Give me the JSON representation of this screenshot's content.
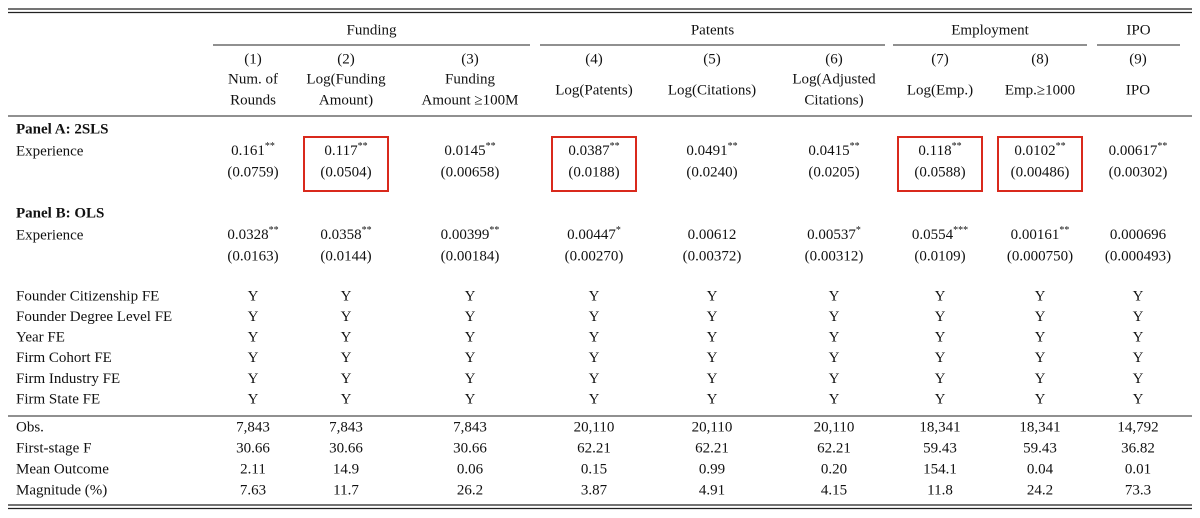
{
  "groups": [
    {
      "label": "Funding",
      "columns": [
        {
          "number": "(1)",
          "label": [
            "Num. of",
            "Rounds"
          ]
        },
        {
          "number": "(2)",
          "label": [
            "Log(Funding",
            "Amount)"
          ]
        },
        {
          "number": "(3)",
          "label": [
            "Funding",
            "Amount ≥100M"
          ]
        }
      ]
    },
    {
      "label": "Patents",
      "columns": [
        {
          "number": "(4)",
          "label": [
            "Log(Patents)"
          ]
        },
        {
          "number": "(5)",
          "label": [
            "Log(Citations)"
          ]
        },
        {
          "number": "(6)",
          "label": [
            "Log(Adjusted",
            "Citations)"
          ]
        }
      ]
    },
    {
      "label": "Employment",
      "columns": [
        {
          "number": "(7)",
          "label": [
            "Log(Emp.)"
          ]
        },
        {
          "number": "(8)",
          "label": [
            "Emp.≥1000"
          ]
        }
      ]
    },
    {
      "label": "IPO",
      "columns": [
        {
          "number": "(9)",
          "label": [
            "IPO"
          ]
        }
      ]
    }
  ],
  "panels": [
    {
      "title": "Panel A: 2SLS",
      "row_label": "Experience",
      "cells": [
        {
          "coef": "0.161",
          "stars": "**",
          "se": "(0.0759)"
        },
        {
          "coef": "0.117",
          "stars": "**",
          "se": "(0.0504)",
          "highlighted": true
        },
        {
          "coef": "0.0145",
          "stars": "**",
          "se": "(0.00658)"
        },
        {
          "coef": "0.0387",
          "stars": "**",
          "se": "(0.0188)",
          "highlighted": true
        },
        {
          "coef": "0.0491",
          "stars": "**",
          "se": "(0.0240)"
        },
        {
          "coef": "0.0415",
          "stars": "**",
          "se": "(0.0205)"
        },
        {
          "coef": "0.118",
          "stars": "**",
          "se": "(0.0588)",
          "highlighted": true
        },
        {
          "coef": "0.0102",
          "stars": "**",
          "se": "(0.00486)",
          "highlighted": true
        },
        {
          "coef": "0.00617",
          "stars": "**",
          "se": "(0.00302)"
        }
      ]
    },
    {
      "title": "Panel B: OLS",
      "row_label": "Experience",
      "cells": [
        {
          "coef": "0.0328",
          "stars": "**",
          "se": "(0.0163)"
        },
        {
          "coef": "0.0358",
          "stars": "**",
          "se": "(0.0144)"
        },
        {
          "coef": "0.00399",
          "stars": "**",
          "se": "(0.00184)"
        },
        {
          "coef": "0.00447",
          "stars": "*",
          "se": "(0.00270)"
        },
        {
          "coef": "0.00612",
          "se": "(0.00372)"
        },
        {
          "coef": "0.00537",
          "stars": "*",
          "se": "(0.00312)"
        },
        {
          "coef": "0.0554",
          "stars": "***",
          "se": "(0.0109)"
        },
        {
          "coef": "0.00161",
          "stars": "**",
          "se": "(0.000750)"
        },
        {
          "coef": "0.000696",
          "se": "(0.000493)"
        }
      ]
    }
  ],
  "fixed_effects": [
    {
      "label": "Founder Citizenship FE",
      "values": [
        "Y",
        "Y",
        "Y",
        "Y",
        "Y",
        "Y",
        "Y",
        "Y",
        "Y"
      ]
    },
    {
      "label": "Founder Degree Level FE",
      "values": [
        "Y",
        "Y",
        "Y",
        "Y",
        "Y",
        "Y",
        "Y",
        "Y",
        "Y"
      ]
    },
    {
      "label": "Year FE",
      "values": [
        "Y",
        "Y",
        "Y",
        "Y",
        "Y",
        "Y",
        "Y",
        "Y",
        "Y"
      ]
    },
    {
      "label": "Firm Cohort FE",
      "values": [
        "Y",
        "Y",
        "Y",
        "Y",
        "Y",
        "Y",
        "Y",
        "Y",
        "Y"
      ]
    },
    {
      "label": "Firm Industry FE",
      "values": [
        "Y",
        "Y",
        "Y",
        "Y",
        "Y",
        "Y",
        "Y",
        "Y",
        "Y"
      ]
    },
    {
      "label": "Firm State FE",
      "values": [
        "Y",
        "Y",
        "Y",
        "Y",
        "Y",
        "Y",
        "Y",
        "Y",
        "Y"
      ]
    }
  ],
  "statistics": [
    {
      "label": "Obs.",
      "values": [
        "7,843",
        "7,843",
        "7,843",
        "20,110",
        "20,110",
        "20,110",
        "18,341",
        "18,341",
        "14,792"
      ]
    },
    {
      "label": "First-stage F",
      "values": [
        "30.66",
        "30.66",
        "30.66",
        "62.21",
        "62.21",
        "62.21",
        "59.43",
        "59.43",
        "36.82"
      ]
    },
    {
      "label": "Mean Outcome",
      "values": [
        "2.11",
        "14.9",
        "0.06",
        "0.15",
        "0.99",
        "0.20",
        "154.1",
        "0.04",
        "0.01"
      ]
    },
    {
      "label": "Magnitude (%)",
      "values": [
        "7.63",
        "11.7",
        "26.2",
        "3.87",
        "4.91",
        "4.15",
        "11.8",
        "24.2",
        "73.3"
      ]
    }
  ]
}
